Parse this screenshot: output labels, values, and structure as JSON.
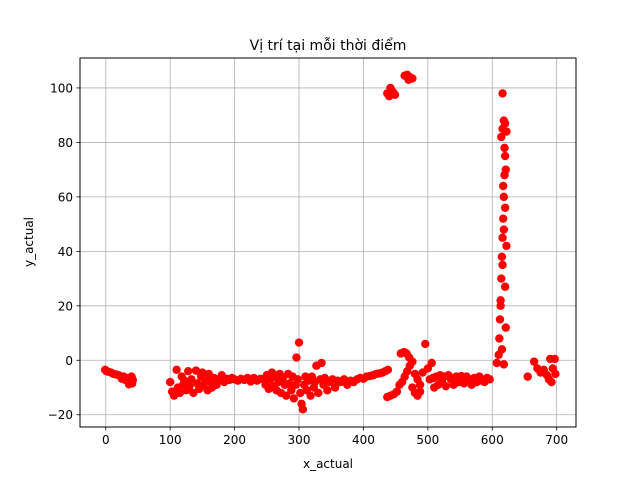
{
  "chart_data": {
    "type": "scatter",
    "title": "Vị trí tại mỗi thời điểm",
    "xlabel": "x_actual",
    "ylabel": "y_actual",
    "xlim": [
      -40,
      730
    ],
    "ylim": [
      -24.5,
      111
    ],
    "xticks": [
      0,
      100,
      200,
      300,
      400,
      500,
      600,
      700
    ],
    "yticks": [
      -20,
      0,
      20,
      40,
      60,
      80,
      100
    ],
    "xtick_labels": [
      "0",
      "100",
      "200",
      "300",
      "400",
      "500",
      "600",
      "700"
    ],
    "ytick_labels": [
      "−20",
      "0",
      "20",
      "40",
      "60",
      "80",
      "100"
    ],
    "grid": true,
    "marker_color": "#ff0000",
    "series": [
      {
        "points": [
          [
            -1,
            -3.5
          ],
          [
            1,
            -4
          ],
          [
            4,
            -4.2
          ],
          [
            8,
            -4.5
          ],
          [
            12,
            -5
          ],
          [
            16,
            -5.2
          ],
          [
            20,
            -5.5
          ],
          [
            24,
            -6
          ],
          [
            28,
            -6
          ],
          [
            32,
            -6.5
          ],
          [
            35,
            -7
          ],
          [
            38,
            -7.5
          ],
          [
            40,
            -6
          ],
          [
            41,
            -8.5
          ],
          [
            36,
            -8.8
          ],
          [
            30,
            -7.2
          ],
          [
            25,
            -6.8
          ],
          [
            42,
            -7.2
          ],
          [
            100,
            -8
          ],
          [
            103,
            -11.5
          ],
          [
            106,
            -13
          ],
          [
            110,
            -3.5
          ],
          [
            112,
            -10
          ],
          [
            115,
            -12
          ],
          [
            118,
            -6
          ],
          [
            120,
            -9
          ],
          [
            122,
            -7.5
          ],
          [
            125,
            -11
          ],
          [
            128,
            -4
          ],
          [
            130,
            -9.5
          ],
          [
            133,
            -7
          ],
          [
            136,
            -12
          ],
          [
            140,
            -3.8
          ],
          [
            142,
            -8.5
          ],
          [
            145,
            -10.5
          ],
          [
            148,
            -6
          ],
          [
            150,
            -4.5
          ],
          [
            152,
            -9
          ],
          [
            155,
            -7.5
          ],
          [
            158,
            -11
          ],
          [
            160,
            -5
          ],
          [
            163,
            -8
          ],
          [
            165,
            -10
          ],
          [
            168,
            -6.5
          ],
          [
            172,
            -9
          ],
          [
            176,
            -7
          ],
          [
            180,
            -5.5
          ],
          [
            184,
            -8
          ],
          [
            188,
            -6.8
          ],
          [
            192,
            -7.2
          ],
          [
            196,
            -6.5
          ],
          [
            200,
            -7
          ],
          [
            205,
            -7.5
          ],
          [
            210,
            -6.8
          ],
          [
            215,
            -7.2
          ],
          [
            220,
            -6.5
          ],
          [
            225,
            -7.8
          ],
          [
            230,
            -6.5
          ],
          [
            235,
            -7.5
          ],
          [
            240,
            -6.8
          ],
          [
            245,
            -7
          ],
          [
            248,
            -9
          ],
          [
            250,
            -5.5
          ],
          [
            253,
            -10.5
          ],
          [
            255,
            -7
          ],
          [
            258,
            -4.5
          ],
          [
            260,
            -9.5
          ],
          [
            263,
            -6
          ],
          [
            265,
            -11
          ],
          [
            268,
            -8
          ],
          [
            270,
            -5
          ],
          [
            272,
            -12
          ],
          [
            275,
            -6.5
          ],
          [
            278,
            -9
          ],
          [
            280,
            -13
          ],
          [
            283,
            -5
          ],
          [
            285,
            -8.5
          ],
          [
            288,
            -11
          ],
          [
            290,
            -6
          ],
          [
            292,
            -14
          ],
          [
            295,
            -9
          ],
          [
            296,
            1
          ],
          [
            298,
            -7
          ],
          [
            300,
            6.5
          ],
          [
            302,
            -12
          ],
          [
            304,
            -16
          ],
          [
            306,
            -18
          ],
          [
            308,
            -9
          ],
          [
            310,
            -6
          ],
          [
            312,
            -11
          ],
          [
            315,
            -7.5
          ],
          [
            318,
            -13
          ],
          [
            320,
            -6
          ],
          [
            323,
            -10
          ],
          [
            325,
            -8
          ],
          [
            327,
            -2
          ],
          [
            330,
            -12
          ],
          [
            333,
            -7
          ],
          [
            335,
            -1
          ],
          [
            338,
            -9
          ],
          [
            340,
            -6.5
          ],
          [
            344,
            -11
          ],
          [
            348,
            -8
          ],
          [
            352,
            -7
          ],
          [
            356,
            -10
          ],
          [
            360,
            -7.5
          ],
          [
            365,
            -8
          ],
          [
            370,
            -7
          ],
          [
            375,
            -9
          ],
          [
            380,
            -7.5
          ],
          [
            385,
            -8
          ],
          [
            390,
            -7
          ],
          [
            395,
            -6.5
          ],
          [
            400,
            -6.8
          ],
          [
            405,
            -6
          ],
          [
            410,
            -5.8
          ],
          [
            415,
            -5.5
          ],
          [
            420,
            -5
          ],
          [
            425,
            -4.8
          ],
          [
            430,
            -4.5
          ],
          [
            434,
            -4
          ],
          [
            438,
            -3.5
          ],
          [
            437,
            -13.5
          ],
          [
            442,
            -13
          ],
          [
            447,
            -12.5
          ],
          [
            452,
            -11.5
          ],
          [
            456,
            -9
          ],
          [
            460,
            -8
          ],
          [
            464,
            -6
          ],
          [
            468,
            -4
          ],
          [
            472,
            -2
          ],
          [
            476,
            -10
          ],
          [
            480,
            -12
          ],
          [
            484,
            -13
          ],
          [
            488,
            -11.5
          ],
          [
            458,
            2.5
          ],
          [
            463,
            3
          ],
          [
            467,
            2.5
          ],
          [
            471,
            1
          ],
          [
            476,
            -0.5
          ],
          [
            480,
            -5
          ],
          [
            484,
            -7
          ],
          [
            488,
            -9
          ],
          [
            492,
            -4.5
          ],
          [
            496,
            6
          ],
          [
            500,
            -3
          ],
          [
            503,
            -7
          ],
          [
            506,
            -1
          ],
          [
            508,
            -6.5
          ],
          [
            510,
            -10
          ],
          [
            513,
            -6
          ],
          [
            516,
            -9
          ],
          [
            519,
            -5.5
          ],
          [
            522,
            -8
          ],
          [
            525,
            -6
          ],
          [
            528,
            -9.5
          ],
          [
            532,
            -5.5
          ],
          [
            536,
            -7
          ],
          [
            540,
            -9
          ],
          [
            544,
            -6
          ],
          [
            548,
            -8
          ],
          [
            552,
            -5.8
          ],
          [
            556,
            -8.5
          ],
          [
            560,
            -6
          ],
          [
            564,
            -7
          ],
          [
            568,
            -9
          ],
          [
            572,
            -6.5
          ],
          [
            576,
            -8
          ],
          [
            580,
            -6
          ],
          [
            584,
            -7.5
          ],
          [
            588,
            -8
          ],
          [
            592,
            -6.5
          ],
          [
            596,
            -7
          ],
          [
            607,
            -1
          ],
          [
            610,
            2
          ],
          [
            611,
            8
          ],
          [
            612,
            15
          ],
          [
            613,
            22
          ],
          [
            614,
            30
          ],
          [
            615,
            38
          ],
          [
            616,
            45
          ],
          [
            617,
            52
          ],
          [
            618,
            60
          ],
          [
            619,
            68
          ],
          [
            620,
            75
          ],
          [
            614,
            82
          ],
          [
            616,
            85
          ],
          [
            618,
            88
          ],
          [
            620,
            87
          ],
          [
            622,
            84
          ],
          [
            619,
            78
          ],
          [
            621,
            70
          ],
          [
            617,
            64
          ],
          [
            620,
            56
          ],
          [
            618,
            48
          ],
          [
            622,
            42
          ],
          [
            616,
            35
          ],
          [
            620,
            27
          ],
          [
            613,
            20
          ],
          [
            621,
            12
          ],
          [
            615,
            4
          ],
          [
            618,
            -1.5
          ],
          [
            616,
            98
          ],
          [
            437,
            98
          ],
          [
            440,
            97
          ],
          [
            442,
            100
          ],
          [
            446,
            98.5
          ],
          [
            449,
            97.5
          ],
          [
            464,
            104.5
          ],
          [
            468,
            104.8
          ],
          [
            472,
            104
          ],
          [
            476,
            103.5
          ],
          [
            470,
            103
          ],
          [
            655,
            -6
          ],
          [
            665,
            -0.5
          ],
          [
            670,
            -3
          ],
          [
            675,
            -4.5
          ],
          [
            680,
            -3.5
          ],
          [
            685,
            -5.5
          ],
          [
            688,
            -7
          ],
          [
            690,
            0.5
          ],
          [
            692,
            -8
          ],
          [
            694,
            -3
          ],
          [
            697,
            0.5
          ],
          [
            698,
            -5
          ]
        ]
      }
    ]
  }
}
